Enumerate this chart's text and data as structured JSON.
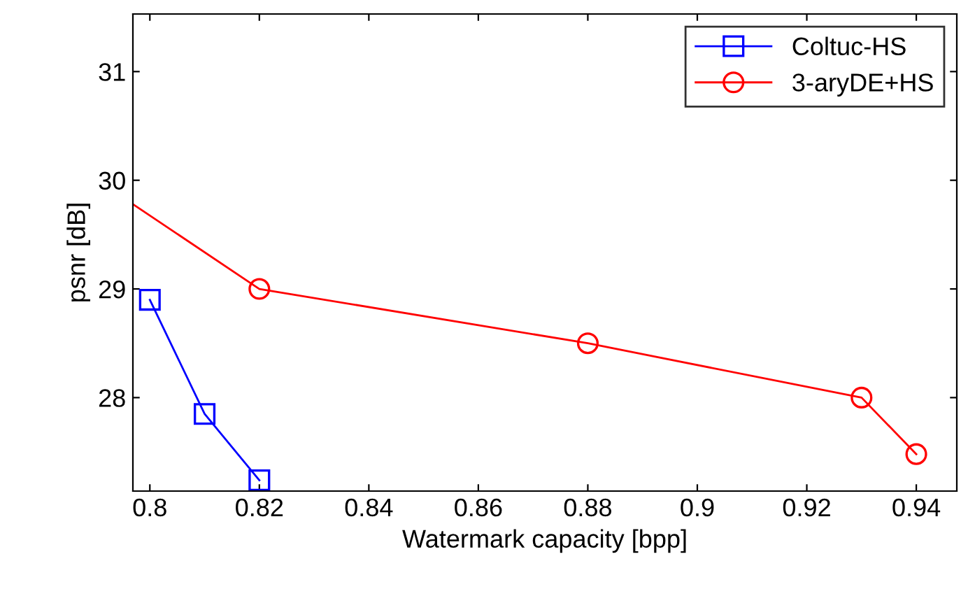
{
  "chart_data": {
    "type": "line",
    "xlabel": "Watermark capacity [bpp]",
    "ylabel": "psnr [dB]",
    "xlim": [
      0.7969,
      0.9474
    ],
    "ylim": [
      27.14,
      31.53
    ],
    "xticks": [
      0.8,
      0.82,
      0.84,
      0.86,
      0.88,
      0.9,
      0.92,
      0.94
    ],
    "yticks": [
      28,
      29,
      30,
      31
    ],
    "grid": false,
    "legend": "top right",
    "line_style": "solid",
    "series": [
      {
        "name": "Coltuc-HS",
        "color": "#0000ff",
        "marker": "square",
        "x": [
          0.8,
          0.81,
          0.82
        ],
        "values": [
          28.9,
          27.85,
          27.24
        ]
      },
      {
        "name": "3-aryDE+HS",
        "color": "#ff0000",
        "marker": "circle",
        "x": [
          0.7969,
          0.82,
          0.88,
          0.93,
          0.94
        ],
        "values": [
          29.78,
          29.0,
          28.5,
          28.0,
          27.48
        ]
      }
    ]
  }
}
